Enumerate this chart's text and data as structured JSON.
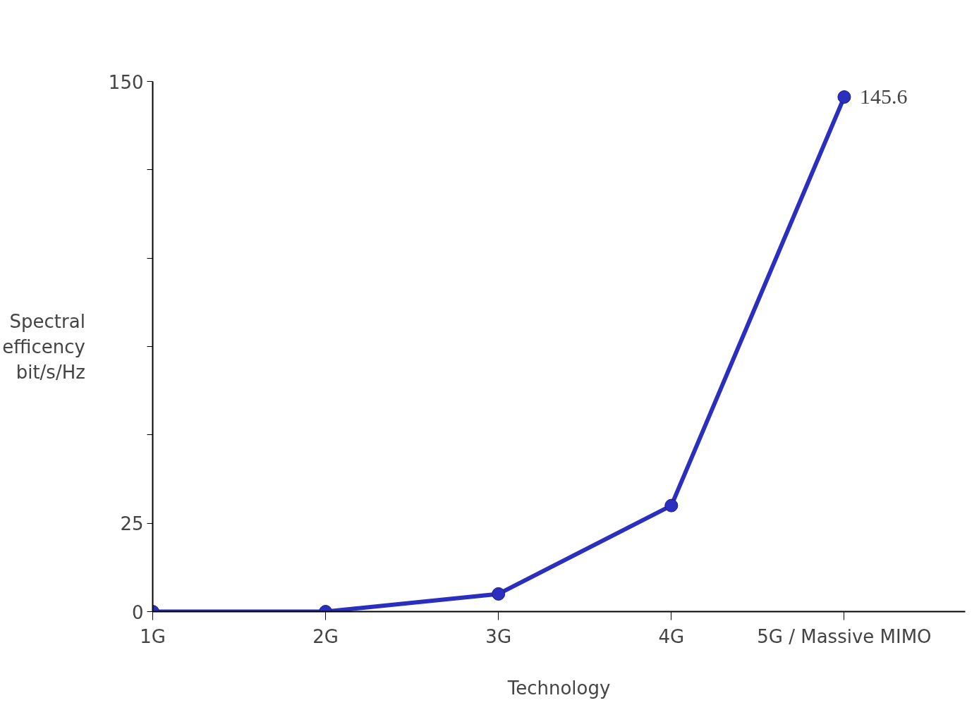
{
  "chart_data": {
    "type": "line",
    "xlabel": "Technology",
    "ylabel": "Spectral\nefficency\nbit/s/Hz",
    "categories": [
      "1G",
      "2G",
      "3G",
      "4G",
      "5G / Massive MIMO"
    ],
    "series": [
      {
        "color": "#2a2fbf",
        "values": [
          0,
          0,
          5,
          30,
          145.6
        ],
        "value_labels": [
          null,
          null,
          null,
          null,
          "145.6"
        ]
      }
    ],
    "ylim": [
      0,
      150
    ],
    "yticks": [
      0,
      25,
      {
        "value": 50,
        "label": null
      },
      {
        "value": 75,
        "label": null
      },
      {
        "value": 100,
        "label": null
      },
      {
        "value": 125,
        "label": null
      },
      150
    ],
    "marker": "circle",
    "line_style": "solid"
  }
}
